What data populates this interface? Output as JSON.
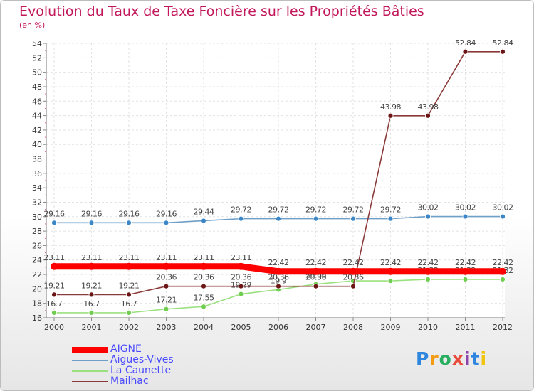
{
  "chart_data": {
    "type": "line",
    "title": "Evolution du Taux de Taxe Foncière sur les Propriétés Bâties",
    "ylabel": "(en %)",
    "xlabel": "",
    "ylim": [
      16,
      54
    ],
    "yticks": [
      16,
      18,
      20,
      22,
      24,
      26,
      28,
      30,
      32,
      34,
      36,
      38,
      40,
      42,
      44,
      46,
      48,
      50,
      52,
      54
    ],
    "x": [
      "2000",
      "2001",
      "2002",
      "2003",
      "2004",
      "2005",
      "2006",
      "2007",
      "2008",
      "2009",
      "2010",
      "2011",
      "2012"
    ],
    "series": [
      {
        "name": "Aigues-Vives",
        "color": "#6d9fc8",
        "marker": "#3b86c6",
        "values": [
          29.16,
          29.16,
          29.16,
          29.16,
          29.44,
          29.72,
          29.72,
          29.72,
          29.72,
          29.72,
          30.02,
          30.02,
          30.02
        ],
        "labels": [
          "29.16",
          "29.16",
          "29.16",
          "29.16",
          "29.44",
          "29.72",
          "29.72",
          "29.72",
          "29.72",
          "29.72",
          "30.02",
          "30.02",
          "30.02"
        ]
      },
      {
        "name": "La Caunette",
        "color": "#9be07f",
        "marker": "#6fce4f",
        "values": [
          16.7,
          16.7,
          16.7,
          17.21,
          17.55,
          19.29,
          19.9,
          20.66,
          21.11,
          21.11,
          21.32,
          21.32,
          21.32
        ],
        "labels": [
          "16.7",
          "16.7",
          "16.7",
          "17.21",
          "17.55",
          "19.29",
          "19.9",
          "20.66",
          "21.11",
          "21.11",
          "21.32",
          "21.32",
          "21.32"
        ]
      },
      {
        "name": "Mailhac",
        "color": "#8b3a3a",
        "marker": "#6b1515",
        "values": [
          19.21,
          19.21,
          19.21,
          20.36,
          20.36,
          20.36,
          20.36,
          20.36,
          20.36,
          43.98,
          43.98,
          52.84,
          52.84
        ],
        "labels": [
          "19.21",
          "19.21",
          "19.21",
          "20.36",
          "20.36",
          "20.36",
          "20.36",
          "20.36",
          "20.36",
          "43.98",
          "43.98",
          "52.84",
          "52.84"
        ]
      },
      {
        "name": "AIGNE",
        "color": "#ff0000",
        "marker": "#ff0000",
        "values": [
          23.11,
          23.11,
          23.11,
          23.11,
          23.11,
          23.11,
          22.42,
          22.42,
          22.42,
          22.42,
          22.42,
          22.42,
          22.42
        ],
        "labels": [
          "23.11",
          "23.11",
          "23.11",
          "23.11",
          "23.11",
          "23.11",
          "22.42",
          "22.42",
          "22.42",
          "22.42",
          "22.42",
          "22.42",
          "22.42"
        ]
      }
    ]
  },
  "legend": [
    {
      "name": "AIGNE",
      "color": "#ff0000"
    },
    {
      "name": "Aigues-Vives",
      "color": "#6d9fc8"
    },
    {
      "name": "La Caunette",
      "color": "#9be07f"
    },
    {
      "name": "Mailhac",
      "color": "#8b3a3a"
    }
  ],
  "logo": [
    "P",
    "r",
    "o",
    "x",
    "i",
    "t",
    "i"
  ]
}
